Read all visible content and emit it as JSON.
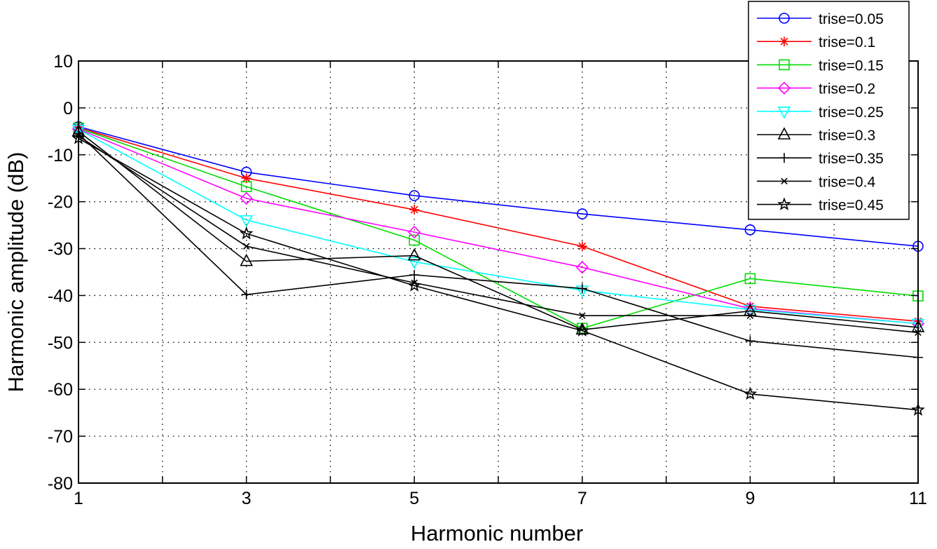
{
  "chart_data": {
    "type": "line",
    "xlabel": "Harmonic number",
    "ylabel": "Harmonic amplitude (dB)",
    "xlim": [
      1,
      11
    ],
    "ylim": [
      -80,
      10
    ],
    "xticks": [
      1,
      3,
      5,
      7,
      9,
      11
    ],
    "xtick_labels": [
      "1",
      "3",
      "5",
      "7",
      "9",
      "11"
    ],
    "yticks": [
      10,
      0,
      -10,
      -20,
      -30,
      -40,
      -50,
      -60,
      -70,
      -80
    ],
    "ytick_labels": [
      "10",
      "0",
      "-10",
      "-20",
      "-30",
      "-40",
      "-50",
      "-60",
      "-70",
      "-80"
    ],
    "grid": true,
    "legend_position": "top-right",
    "x": [
      1,
      3,
      5,
      7,
      9,
      11
    ],
    "series": [
      {
        "name": "trise=0.05",
        "color": "#0000ff",
        "marker": "circle",
        "values": [
          -4,
          -13.7,
          -18.7,
          -22.6,
          -26.0,
          -29.5
        ]
      },
      {
        "name": "trise=0.1",
        "color": "#ff0000",
        "marker": "asterisk",
        "values": [
          -4.2,
          -15,
          -21.7,
          -29.5,
          -42.3,
          -45.5
        ]
      },
      {
        "name": "trise=0.15",
        "color": "#00dd00",
        "marker": "square",
        "values": [
          -4.3,
          -16.8,
          -28.2,
          -47.0,
          -36.4,
          -40.1
        ]
      },
      {
        "name": "trise=0.2",
        "color": "#ff00ff",
        "marker": "diamond",
        "values": [
          -4.5,
          -19.3,
          -26.5,
          -34.0,
          -42.8,
          -46.0
        ]
      },
      {
        "name": "trise=0.25",
        "color": "#00ffff",
        "marker": "triangle-down",
        "values": [
          -4.6,
          -23.9,
          -32.8,
          -38.9,
          -43.0,
          -46.0
        ]
      },
      {
        "name": "trise=0.3",
        "color": "#000000",
        "marker": "triangle-up",
        "values": [
          -5.0,
          -32.7,
          -31.5,
          -47.3,
          -43.3,
          -46.8
        ]
      },
      {
        "name": "trise=0.35",
        "color": "#000000",
        "marker": "plus",
        "values": [
          -5.5,
          -39.8,
          -35.6,
          -38.5,
          -49.7,
          -53.2
        ]
      },
      {
        "name": "trise=0.4",
        "color": "#000000",
        "marker": "x",
        "values": [
          -6.0,
          -29.5,
          -37.3,
          -44.3,
          -44.3,
          -47.9
        ]
      },
      {
        "name": "trise=0.45",
        "color": "#000000",
        "marker": "star",
        "values": [
          -6.5,
          -26.8,
          -37.9,
          -47.5,
          -61.0,
          -64.4
        ]
      }
    ]
  }
}
